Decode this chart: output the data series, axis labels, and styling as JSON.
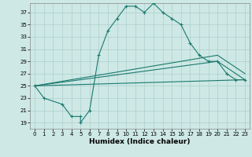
{
  "title": "",
  "xlabel": "Humidex (Indice chaleur)",
  "background_color": "#cde8e5",
  "grid_color": "#aecfcc",
  "line_color": "#1a7a6e",
  "xlim": [
    -0.5,
    23.5
  ],
  "ylim": [
    18.0,
    38.5
  ],
  "xticks": [
    0,
    1,
    2,
    3,
    4,
    5,
    6,
    7,
    8,
    9,
    10,
    11,
    12,
    13,
    14,
    15,
    16,
    17,
    18,
    19,
    20,
    21,
    22,
    23
  ],
  "yticks": [
    19,
    21,
    23,
    25,
    27,
    29,
    31,
    33,
    35,
    37
  ],
  "line1_x": [
    0,
    1,
    3,
    4,
    5,
    5,
    6,
    7,
    8,
    9,
    10,
    11,
    12,
    13,
    14,
    15,
    16,
    17,
    18,
    19,
    20,
    21,
    22,
    23
  ],
  "line1_y": [
    25,
    23,
    22,
    20,
    20,
    19,
    21,
    30,
    34,
    36,
    38,
    38,
    37,
    38.5,
    37,
    36,
    35,
    32,
    30,
    29,
    29,
    27,
    26,
    26
  ],
  "line2_x": [
    0,
    23
  ],
  "line2_y": [
    25,
    26
  ],
  "line3_x": [
    0,
    20,
    23
  ],
  "line3_y": [
    25,
    30,
    27
  ],
  "line4_x": [
    0,
    20,
    23
  ],
  "line4_y": [
    25,
    29,
    26
  ]
}
